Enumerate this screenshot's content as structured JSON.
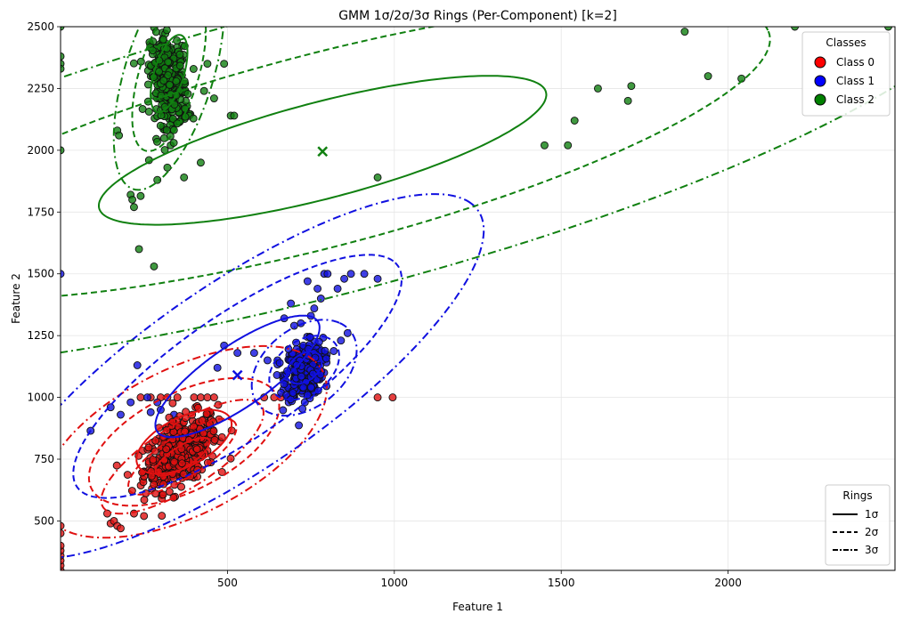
{
  "chart_data": {
    "type": "scatter",
    "title": "GMM 1σ/2σ/3σ Rings (Per-Component) [k=2]",
    "xlabel": "Feature 1",
    "ylabel": "Feature 2",
    "xlim": [
      0,
      2500
    ],
    "ylim": [
      300,
      2500
    ],
    "xticks": [
      500,
      1000,
      1500,
      2000
    ],
    "yticks": [
      500,
      750,
      1000,
      1250,
      1500,
      1750,
      2000,
      2250,
      2500
    ],
    "grid": true,
    "legend_classes": {
      "title": "Classes",
      "placement": "top-right",
      "entries": [
        {
          "name": "Class 0",
          "color": "#ff0000"
        },
        {
          "name": "Class 1",
          "color": "#0000ff"
        },
        {
          "name": "Class 2",
          "color": "#008000"
        }
      ]
    },
    "legend_rings": {
      "title": "Rings",
      "placement": "bottom-right",
      "entries": [
        {
          "name": "1σ",
          "dash": "solid"
        },
        {
          "name": "2σ",
          "dash": "dashed"
        },
        {
          "name": "3σ",
          "dash": "dashdot"
        }
      ]
    },
    "components": [
      {
        "class": "Class 0",
        "color": "#e01010",
        "center": [
          365,
          760
        ],
        "a1": 105,
        "b1": 38,
        "angle_deg": 43
      },
      {
        "class": "Class 0",
        "color": "#e01010",
        "center": [
          370,
          820
        ],
        "a1": 170,
        "b1": 90,
        "angle_deg": 40
      },
      {
        "class": "Class 1",
        "color": "#1010e0",
        "center": [
          730,
          1120
        ],
        "a1": 70,
        "b1": 45,
        "angle_deg": 60
      },
      {
        "class": "Class 1",
        "color": "#1010e0",
        "center": [
          530,
          1085
        ],
        "a1": 330,
        "b1": 110,
        "angle_deg": 45
      },
      {
        "class": "Class 2",
        "color": "#108010",
        "center": [
          325,
          2310
        ],
        "a1": 160,
        "b1": 45,
        "angle_deg": 78
      },
      {
        "class": "Class 2",
        "color": "#108010",
        "center": [
          785,
          2000
        ],
        "a1": 710,
        "b1": 190,
        "angle_deg": 20
      }
    ],
    "centers": [
      {
        "class": "Class 1",
        "color": "#1010e0",
        "x": 530,
        "y": 1090
      },
      {
        "class": "Class 2",
        "color": "#108010",
        "x": 785,
        "y": 1995
      }
    ],
    "clusters": [
      {
        "class": "Class 0",
        "color": "#e01010",
        "cx": 360,
        "cy": 780,
        "sx": 55,
        "sy": 75,
        "rho": 0.5,
        "n": 420
      },
      {
        "class": "Class 1",
        "color": "#1010e0",
        "cx": 730,
        "cy": 1110,
        "sx": 28,
        "sy": 55,
        "rho": 0.2,
        "n": 380
      },
      {
        "class": "Class 2",
        "color": "#108010",
        "cx": 325,
        "cy": 2270,
        "sx": 28,
        "sy": 90,
        "rho": -0.2,
        "n": 340
      }
    ],
    "outliers": [
      {
        "class": "Class 0",
        "color": "#e01010",
        "points": [
          [
            0,
            300
          ],
          [
            0,
            320
          ],
          [
            0,
            340
          ],
          [
            0,
            360
          ],
          [
            0,
            380
          ],
          [
            0,
            400
          ],
          [
            0,
            450
          ],
          [
            0,
            480
          ],
          [
            140,
            530
          ],
          [
            150,
            490
          ],
          [
            160,
            500
          ],
          [
            170,
            480
          ],
          [
            180,
            470
          ],
          [
            220,
            530
          ],
          [
            250,
            520
          ],
          [
            610,
            1000
          ],
          [
            640,
            1000
          ],
          [
            660,
            1000
          ],
          [
            680,
            1000
          ],
          [
            700,
            1000
          ],
          [
            950,
            1000
          ],
          [
            995,
            1000
          ],
          [
            300,
            1000
          ],
          [
            320,
            1000
          ],
          [
            350,
            1000
          ],
          [
            400,
            1000
          ],
          [
            420,
            1000
          ],
          [
            440,
            1000
          ],
          [
            460,
            1000
          ],
          [
            240,
            1000
          ],
          [
            270,
            1000
          ]
        ]
      },
      {
        "class": "Class 1",
        "color": "#1010e0",
        "points": [
          [
            0,
            1500
          ],
          [
            90,
            865
          ],
          [
            150,
            960
          ],
          [
            180,
            930
          ],
          [
            210,
            980
          ],
          [
            230,
            1130
          ],
          [
            260,
            1000
          ],
          [
            270,
            940
          ],
          [
            290,
            980
          ],
          [
            300,
            950
          ],
          [
            340,
            930
          ],
          [
            470,
            1120
          ],
          [
            490,
            1210
          ],
          [
            530,
            1180
          ],
          [
            580,
            1180
          ],
          [
            620,
            1150
          ],
          [
            650,
            1150
          ],
          [
            690,
            1380
          ],
          [
            720,
            1300
          ],
          [
            750,
            1330
          ],
          [
            760,
            1360
          ],
          [
            770,
            1440
          ],
          [
            790,
            1500
          ],
          [
            800,
            1500
          ],
          [
            830,
            1440
          ],
          [
            850,
            1480
          ],
          [
            870,
            1500
          ],
          [
            910,
            1500
          ],
          [
            950,
            1480
          ],
          [
            840,
            1230
          ],
          [
            860,
            1260
          ],
          [
            700,
            1290
          ],
          [
            670,
            1320
          ],
          [
            740,
            1470
          ],
          [
            780,
            1400
          ]
        ]
      },
      {
        "class": "Class 2",
        "color": "#108010",
        "points": [
          [
            0,
            2500
          ],
          [
            0,
            2380
          ],
          [
            0,
            2350
          ],
          [
            0,
            2330
          ],
          [
            0,
            2000
          ],
          [
            170,
            2080
          ],
          [
            175,
            2060
          ],
          [
            210,
            1820
          ],
          [
            215,
            1800
          ],
          [
            220,
            1770
          ],
          [
            235,
            1600
          ],
          [
            240,
            1815
          ],
          [
            265,
            1960
          ],
          [
            280,
            1530
          ],
          [
            290,
            1880
          ],
          [
            320,
            1930
          ],
          [
            330,
            2020
          ],
          [
            370,
            1890
          ],
          [
            420,
            1950
          ],
          [
            430,
            2240
          ],
          [
            440,
            2350
          ],
          [
            460,
            2210
          ],
          [
            490,
            2350
          ],
          [
            510,
            2140
          ],
          [
            520,
            2140
          ],
          [
            950,
            1890
          ],
          [
            1450,
            2020
          ],
          [
            1520,
            2020
          ],
          [
            1540,
            2120
          ],
          [
            1610,
            2250
          ],
          [
            1700,
            2200
          ],
          [
            1710,
            2260
          ],
          [
            1870,
            2480
          ],
          [
            1940,
            2300
          ],
          [
            2040,
            2290
          ],
          [
            2200,
            2500
          ],
          [
            2480,
            2500
          ]
        ]
      }
    ]
  }
}
